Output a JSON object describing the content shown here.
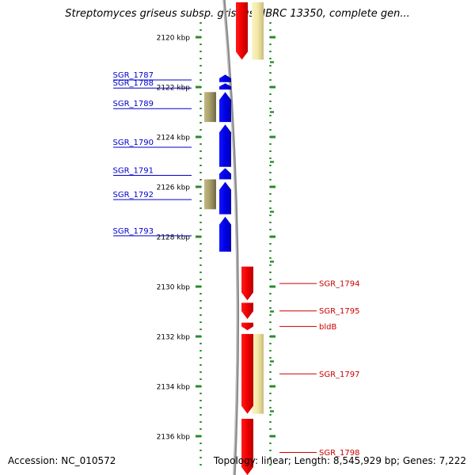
{
  "title": "Streptomyces griseus subsp. griseus NBRC 13350, complete gen...",
  "accession": "Accession: NC_010572",
  "topology": "Topology: linear; Length: 8,545,929 bp; Genes: 7,222",
  "colors": {
    "forward_gene": "#0000ee",
    "reverse_gene": "#ee0000",
    "forward_rna": "#a89f6a",
    "reverse_rna": "#f2e7a4",
    "ruler": "#2a8a2a",
    "backbone": "#8c8c8c"
  },
  "ruler": {
    "unit": "kbp",
    "ticks": [
      {
        "value": 2120,
        "label": "2120 kbp"
      },
      {
        "value": 2122,
        "label": "2122 kbp"
      },
      {
        "value": 2124,
        "label": "2124 kbp"
      },
      {
        "value": 2126,
        "label": "2126 kbp"
      },
      {
        "value": 2128,
        "label": "2128 kbp"
      },
      {
        "value": 2130,
        "label": "2130 kbp"
      },
      {
        "value": 2132,
        "label": "2132 kbp"
      },
      {
        "value": 2134,
        "label": "2134 kbp"
      },
      {
        "value": 2136,
        "label": "2136 kbp"
      }
    ]
  },
  "genes_forward": [
    {
      "label": "SGR_1787",
      "start": 2121.5,
      "end": 2121.8
    },
    {
      "label": "SGR_1788",
      "start": 2121.85,
      "end": 2122.1
    },
    {
      "label": "SGR_1789",
      "start": 2122.2,
      "end": 2123.4
    },
    {
      "label": "SGR_1790",
      "start": 2123.5,
      "end": 2125.2
    },
    {
      "label": "SGR_1791",
      "start": 2125.25,
      "end": 2125.7
    },
    {
      "label": "SGR_1792",
      "start": 2125.8,
      "end": 2127.1
    },
    {
      "label": "SGR_1793",
      "start": 2127.2,
      "end": 2128.6
    }
  ],
  "rna_forward": [
    {
      "start": 2122.2,
      "end": 2123.4
    },
    {
      "start": 2125.7,
      "end": 2126.9
    }
  ],
  "genes_reverse": [
    {
      "label": null,
      "start": 2118.6,
      "end": 2120.9
    },
    {
      "label": "SGR_1794",
      "start": 2129.2,
      "end": 2130.55
    },
    {
      "label": "SGR_1795",
      "start": 2130.65,
      "end": 2131.3
    },
    {
      "label": "bldB",
      "start": 2131.45,
      "end": 2131.75
    },
    {
      "label": "SGR_1797",
      "start": 2131.9,
      "end": 2135.1
    },
    {
      "label": "SGR_1798",
      "start": 2135.3,
      "end": 2138.0
    }
  ],
  "rna_reverse": [
    {
      "start": 2118.6,
      "end": 2120.9
    },
    {
      "start": 2131.9,
      "end": 2135.1
    }
  ]
}
